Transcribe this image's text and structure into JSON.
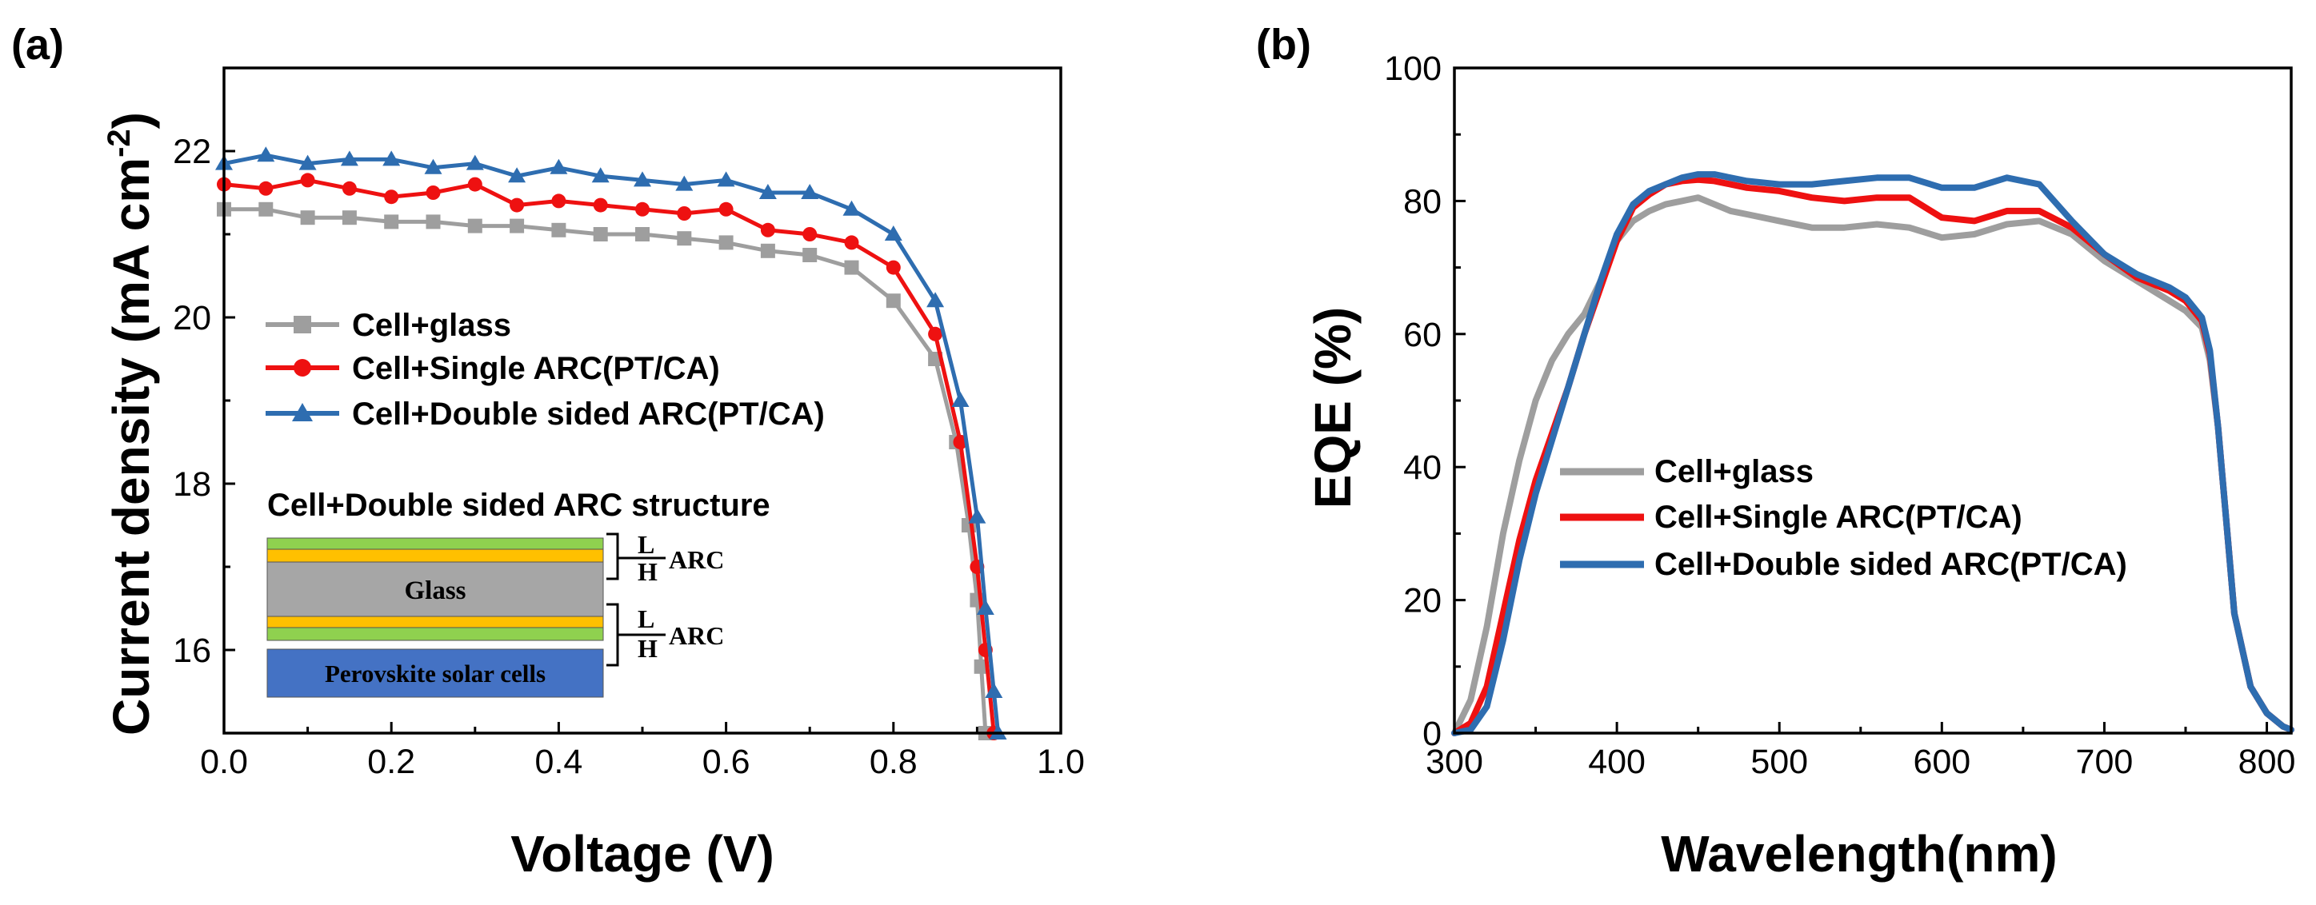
{
  "colors": {
    "glass": "#9e9e9e",
    "single": "#ee1111",
    "double": "#2e6db0",
    "layer_L": "#8fd14f",
    "layer_H": "#ffc000",
    "layer_glass": "#a6a6a6",
    "layer_cell": "#4472c4"
  },
  "chart_data": [
    {
      "panel": "(a)",
      "type": "line",
      "xlabel": "Voltage (V)",
      "ylabel_main": "Current density (mA cm",
      "ylabel_sup": "-2",
      "ylabel_close": ")",
      "xlim": [
        0.0,
        1.0
      ],
      "ylim": [
        15,
        23
      ],
      "xticks": [
        "0.0",
        "0.2",
        "0.4",
        "0.6",
        "0.8",
        "1.0"
      ],
      "yticks": [
        "16",
        "18",
        "20",
        "22"
      ],
      "legend_position": "middle-left",
      "series": [
        {
          "name": "Cell+glass",
          "marker": "square",
          "color_key": "glass",
          "x": [
            0,
            0.05,
            0.1,
            0.15,
            0.2,
            0.25,
            0.3,
            0.35,
            0.4,
            0.45,
            0.5,
            0.55,
            0.6,
            0.65,
            0.7,
            0.75,
            0.8,
            0.85,
            0.875,
            0.89,
            0.9,
            0.905,
            0.91
          ],
          "y": [
            21.3,
            21.3,
            21.2,
            21.2,
            21.15,
            21.15,
            21.1,
            21.1,
            21.05,
            21.0,
            21.0,
            20.95,
            20.9,
            20.8,
            20.75,
            20.6,
            20.2,
            19.5,
            18.5,
            17.5,
            16.6,
            15.8,
            15.0
          ]
        },
        {
          "name": "Cell+Single ARC(PT/CA)",
          "marker": "circle",
          "color_key": "single",
          "x": [
            0,
            0.05,
            0.1,
            0.15,
            0.2,
            0.25,
            0.3,
            0.35,
            0.4,
            0.45,
            0.5,
            0.55,
            0.6,
            0.65,
            0.7,
            0.75,
            0.8,
            0.85,
            0.88,
            0.9,
            0.91,
            0.92
          ],
          "y": [
            21.6,
            21.55,
            21.65,
            21.55,
            21.45,
            21.5,
            21.6,
            21.35,
            21.4,
            21.35,
            21.3,
            21.25,
            21.3,
            21.05,
            21.0,
            20.9,
            20.6,
            19.8,
            18.5,
            17.0,
            16.0,
            15.0
          ]
        },
        {
          "name": "Cell+Double sided ARC(PT/CA)",
          "marker": "triangle",
          "color_key": "double",
          "x": [
            0,
            0.05,
            0.1,
            0.15,
            0.2,
            0.25,
            0.3,
            0.35,
            0.4,
            0.45,
            0.5,
            0.55,
            0.6,
            0.65,
            0.7,
            0.75,
            0.8,
            0.85,
            0.88,
            0.9,
            0.91,
            0.92,
            0.925
          ],
          "y": [
            21.85,
            21.95,
            21.85,
            21.9,
            21.9,
            21.8,
            21.85,
            21.7,
            21.8,
            21.7,
            21.65,
            21.6,
            21.65,
            21.5,
            21.5,
            21.3,
            21.0,
            20.2,
            19.0,
            17.6,
            16.5,
            15.5,
            15.0
          ]
        }
      ],
      "inset": {
        "title": "Cell+Double sided ARC structure",
        "glass_label": "Glass",
        "cell_label": "Perovskite solar cells",
        "L_label": "L",
        "H_label": "H",
        "arc_label": "ARC"
      }
    },
    {
      "panel": "(b)",
      "type": "line",
      "xlabel": "Wavelength(nm)",
      "ylabel": "EQE (%)",
      "xlim": [
        300,
        815
      ],
      "ylim": [
        0,
        100
      ],
      "xticks": [
        "300",
        "400",
        "500",
        "600",
        "700",
        "800"
      ],
      "yticks": [
        "0",
        "20",
        "40",
        "60",
        "80",
        "100"
      ],
      "legend_position": "bottom-center",
      "series": [
        {
          "name": "Cell+glass",
          "color_key": "glass",
          "x": [
            300,
            310,
            320,
            330,
            340,
            350,
            360,
            370,
            380,
            390,
            400,
            410,
            420,
            430,
            440,
            450,
            460,
            470,
            480,
            500,
            520,
            540,
            560,
            580,
            600,
            620,
            640,
            660,
            680,
            700,
            720,
            740,
            750,
            760,
            765,
            770,
            775,
            780,
            790,
            800,
            810,
            815
          ],
          "y": [
            0,
            5,
            16,
            30,
            41,
            50,
            56,
            60,
            63,
            68,
            74,
            77,
            78.5,
            79.5,
            80,
            80.5,
            79.5,
            78.5,
            78,
            77,
            76,
            76,
            76.5,
            76,
            74.5,
            75,
            76.5,
            77,
            75,
            71,
            68,
            65,
            63.5,
            61,
            56,
            46,
            32,
            18,
            7,
            3,
            1,
            0.5
          ]
        },
        {
          "name": "Cell+Single ARC(PT/CA)",
          "color_key": "single",
          "x": [
            300,
            310,
            320,
            330,
            340,
            350,
            360,
            370,
            380,
            390,
            400,
            410,
            420,
            430,
            440,
            450,
            460,
            470,
            480,
            500,
            520,
            540,
            560,
            580,
            600,
            620,
            640,
            660,
            680,
            700,
            720,
            740,
            750,
            760,
            765,
            770,
            775,
            780,
            790,
            800,
            810,
            815
          ],
          "y": [
            0,
            1.5,
            7,
            18,
            29,
            38,
            45,
            52,
            60,
            67,
            74,
            79,
            81,
            82.5,
            83,
            83.2,
            83,
            82.5,
            82,
            81.5,
            80.5,
            80,
            80.5,
            80.5,
            77.5,
            77,
            78.5,
            78.5,
            76,
            72,
            68.5,
            66.5,
            65,
            62,
            57,
            46,
            32,
            18,
            7,
            3,
            1,
            0.5
          ]
        },
        {
          "name": "Cell+Double sided ARC(PT/CA)",
          "color_key": "double",
          "x": [
            300,
            310,
            320,
            330,
            340,
            350,
            360,
            370,
            380,
            390,
            400,
            410,
            420,
            430,
            440,
            450,
            460,
            470,
            480,
            500,
            520,
            540,
            560,
            580,
            600,
            620,
            640,
            660,
            680,
            700,
            720,
            740,
            750,
            760,
            765,
            770,
            775,
            780,
            790,
            800,
            810,
            815
          ],
          "y": [
            0,
            0.5,
            4,
            14,
            26,
            36,
            44,
            52,
            60,
            68,
            75,
            79.5,
            81.5,
            82.5,
            83.5,
            84,
            84,
            83.5,
            83,
            82.5,
            82.5,
            83,
            83.5,
            83.5,
            82,
            82,
            83.5,
            82.5,
            77,
            72,
            69,
            67,
            65.5,
            62.5,
            57.5,
            46,
            32,
            18,
            7,
            3,
            1,
            0.5
          ]
        }
      ]
    }
  ]
}
